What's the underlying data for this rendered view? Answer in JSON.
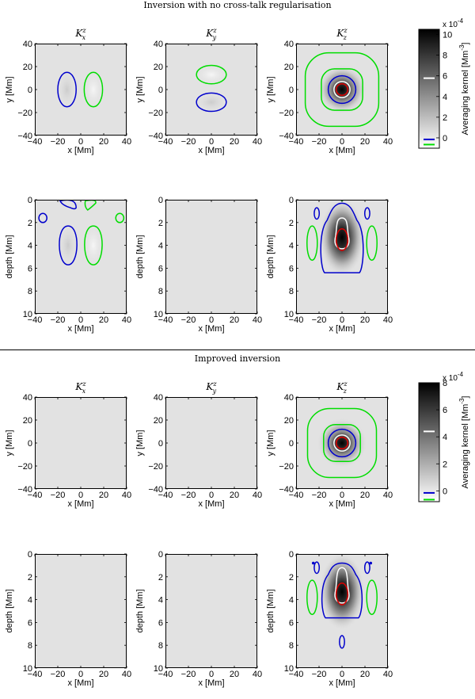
{
  "colors": {
    "panel_background": "#e2e2e2",
    "positive_contour": "#00dd00",
    "negative_contour": "#0000cc",
    "level_white": "#ffffff",
    "level_red": "#dd0000"
  },
  "sections": [
    {
      "title": "Inversion with no cross-talk regularisation",
      "colorbar": {
        "exponent_label": "x 10",
        "exponent": "-4",
        "ticks": [
          "10",
          "8",
          "6",
          "4",
          "2",
          "0"
        ],
        "ylabel_main": "Averaging kernel [Mm",
        "ylabel_sup": "-3",
        "ylabel_end": "]"
      }
    },
    {
      "title": "Improved inversion",
      "colorbar": {
        "exponent_label": "x 10",
        "exponent": "-4",
        "ticks": [
          "8",
          "6",
          "4",
          "2",
          "0"
        ],
        "ylabel_main": "Averaging kernel [Mm",
        "ylabel_sup": "-3",
        "ylabel_end": "]"
      }
    }
  ],
  "panel_titles": [
    {
      "base": "K",
      "sub": "x",
      "sup": "z"
    },
    {
      "base": "K",
      "sub": "y",
      "sup": "z"
    },
    {
      "base": "K",
      "sub": "z",
      "sup": "z"
    }
  ],
  "axes": {
    "horizontal": {
      "xlabel": "x [Mm]",
      "ylabel": "y [Mm]",
      "xticks": [
        "−40",
        "−20",
        "0",
        "20",
        "40"
      ],
      "yticks": [
        "40",
        "20",
        "0",
        "−20",
        "−40"
      ]
    },
    "vertical": {
      "xlabel": "x [Mm]",
      "ylabel": "depth [Mm]",
      "xticks": [
        "−40",
        "−20",
        "0",
        "20",
        "40"
      ],
      "yticks": [
        "0",
        "2",
        "4",
        "6",
        "8",
        "10"
      ]
    }
  },
  "chart_data": [
    {
      "type": "heatmap",
      "section": "Inversion with no cross-talk regularisation",
      "colorbar_range": [
        -0.0001,
        0.00105
      ],
      "horizontal_slices": {
        "xlim": [
          -40,
          40
        ],
        "ylim": [
          -40,
          40
        ],
        "panels": [
          {
            "kernel": "K_x^z",
            "contours": [
              {
                "sign": "negative",
                "center": [
                  -12,
                  0
                ],
                "rx": 8,
                "ry": 15
              },
              {
                "sign": "positive",
                "center": [
                  11,
                  0
                ],
                "rx": 8,
                "ry": 15
              }
            ]
          },
          {
            "kernel": "K_y^z",
            "contours": [
              {
                "sign": "positive",
                "center": [
                  0,
                  13
                ],
                "rx": 13,
                "ry": 8
              },
              {
                "sign": "negative",
                "center": [
                  0,
                  -11
                ],
                "rx": 13,
                "ry": 8
              }
            ]
          },
          {
            "kernel": "K_z^z",
            "peak": 0.00105,
            "contours": [
              {
                "sign": "positive",
                "half_width": 32
              },
              {
                "sign": "positive",
                "half_width": 18
              },
              {
                "sign": "negative",
                "radius": 12
              },
              {
                "sign": "level",
                "color": "white",
                "radius": 7
              },
              {
                "sign": "level",
                "color": "red",
                "radius": 5
              }
            ]
          }
        ]
      },
      "vertical_slices": {
        "xlim": [
          -40,
          40
        ],
        "depth_range": [
          0,
          10
        ],
        "panels": [
          {
            "kernel": "K_x^z",
            "contours": [
              {
                "sign": "negative",
                "center": [
                  -11,
                  4
                ],
                "rx": 8,
                "ry": 1.7
              },
              {
                "sign": "positive",
                "center": [
                  11,
                  4
                ],
                "rx": 8,
                "ry": 1.7
              }
            ]
          },
          {
            "kernel": "K_y^z",
            "contours": []
          },
          {
            "kernel": "K_z^z",
            "peak_depth": 3.5,
            "contours": [
              {
                "sign": "negative",
                "depth_extent": [
                  0.3,
                  6.4
                ]
              },
              {
                "sign": "level",
                "color": "white"
              },
              {
                "sign": "level",
                "color": "red"
              }
            ]
          }
        ]
      }
    },
    {
      "type": "heatmap",
      "section": "Improved inversion",
      "colorbar_range": [
        -8e-05,
        0.0008
      ],
      "horizontal_slices": {
        "xlim": [
          -40,
          40
        ],
        "ylim": [
          -40,
          40
        ],
        "panels": [
          {
            "kernel": "K_x^z",
            "contours": []
          },
          {
            "kernel": "K_y^z",
            "contours": []
          },
          {
            "kernel": "K_z^z",
            "peak": 0.0008,
            "contours": [
              {
                "sign": "positive",
                "half_width": 30
              },
              {
                "sign": "positive",
                "half_width": 16
              },
              {
                "sign": "negative",
                "radius": 12
              },
              {
                "sign": "level",
                "color": "white",
                "radius": 7
              },
              {
                "sign": "level",
                "color": "red",
                "radius": 5
              }
            ]
          }
        ]
      },
      "vertical_slices": {
        "xlim": [
          -40,
          40
        ],
        "depth_range": [
          0,
          10
        ],
        "panels": [
          {
            "kernel": "K_x^z",
            "contours": []
          },
          {
            "kernel": "K_y^z",
            "contours": []
          },
          {
            "kernel": "K_z^z",
            "peak_depth": 3.5,
            "contours": [
              {
                "sign": "negative",
                "depth_extent": [
                  0.8,
                  5.6
                ]
              },
              {
                "sign": "negative",
                "center": [
                  0,
                  7.7
                ],
                "rx": 2,
                "ry": 0.6
              },
              {
                "sign": "level",
                "color": "white"
              },
              {
                "sign": "level",
                "color": "red"
              }
            ]
          }
        ]
      }
    }
  ]
}
